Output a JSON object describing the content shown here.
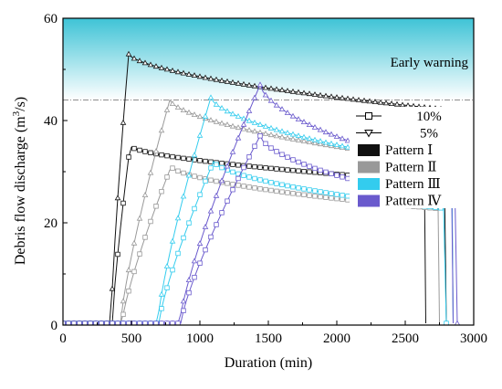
{
  "chart_data": {
    "type": "line",
    "xlabel": "Duration (min)",
    "ylabel": "Debris flow discharge (m³/s)",
    "xlim": [
      0,
      3000
    ],
    "ylim": [
      0,
      60
    ],
    "xticks": [
      "0",
      "500",
      "1000",
      "1500",
      "2000",
      "2500",
      "3000"
    ],
    "yticks": [
      "0",
      "20",
      "40",
      "60"
    ],
    "grid": false,
    "legend_position": "right",
    "legend": {
      "markers": [
        {
          "label": "10%",
          "marker": "square"
        },
        {
          "label": "5%",
          "marker": "triangle-down"
        }
      ],
      "patterns": [
        {
          "label": "Pattern Ⅰ",
          "color": "#111111"
        },
        {
          "label": "Pattern Ⅱ",
          "color": "#999999"
        },
        {
          "label": "Pattern Ⅲ",
          "color": "#33ccee"
        },
        {
          "label": "Pattern Ⅳ",
          "color": "#6a5acd"
        }
      ]
    },
    "warning": {
      "label": "Early warning",
      "threshold": 44,
      "color_top": "#3ec3d6",
      "color_bottom": "#ffffff"
    },
    "series": [
      {
        "pattern": "Pattern Ⅰ",
        "frequency": "5%",
        "color": "#111111",
        "marker": "triangle",
        "start": 350,
        "peak_x": 480,
        "peak_y": 53,
        "end": 2800
      },
      {
        "pattern": "Pattern Ⅰ",
        "frequency": "10%",
        "color": "#111111",
        "marker": "square",
        "start": 360,
        "peak_x": 490,
        "peak_y": 35,
        "end": 2650
      },
      {
        "pattern": "Pattern Ⅱ",
        "frequency": "5%",
        "color": "#999999",
        "marker": "triangle",
        "start": 420,
        "peak_x": 780,
        "peak_y": 44,
        "end": 2850
      },
      {
        "pattern": "Pattern Ⅱ",
        "frequency": "10%",
        "color": "#999999",
        "marker": "square",
        "start": 430,
        "peak_x": 790,
        "peak_y": 31,
        "end": 2750
      },
      {
        "pattern": "Pattern Ⅲ",
        "frequency": "5%",
        "color": "#33ccee",
        "marker": "triangle",
        "start": 690,
        "peak_x": 1080,
        "peak_y": 44.5,
        "end": 2850
      },
      {
        "pattern": "Pattern Ⅲ",
        "frequency": "10%",
        "color": "#33ccee",
        "marker": "square",
        "start": 700,
        "peak_x": 1100,
        "peak_y": 32,
        "end": 2800
      },
      {
        "pattern": "Pattern Ⅳ",
        "frequency": "5%",
        "color": "#6a5acd",
        "marker": "triangle",
        "start": 850,
        "peak_x": 1440,
        "peak_y": 47,
        "end": 2880
      },
      {
        "pattern": "Pattern Ⅳ",
        "frequency": "10%",
        "color": "#6a5acd",
        "marker": "square",
        "start": 860,
        "peak_x": 1440,
        "peak_y": 37,
        "end": 2850
      }
    ]
  }
}
